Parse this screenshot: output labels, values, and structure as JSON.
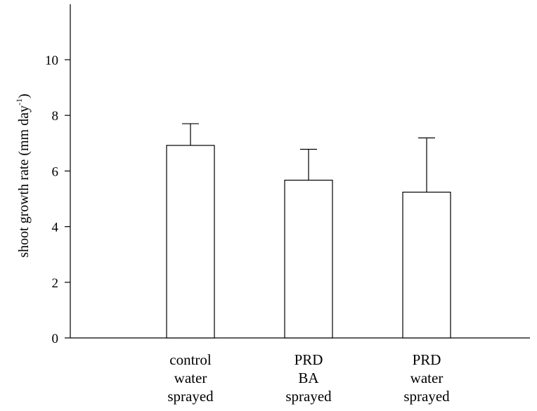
{
  "chart_data": {
    "type": "bar",
    "ylabel": "shoot growth rate (mm day",
    "ylabel_superscript": "-1",
    "ylabel_suffix": ")",
    "ylim": [
      0,
      12
    ],
    "yticks": [
      0,
      2,
      4,
      6,
      8,
      10
    ],
    "categories": [
      [
        "control",
        "water",
        "sprayed"
      ],
      [
        "PRD",
        "BA",
        "sprayed"
      ],
      [
        "PRD",
        "water",
        "sprayed"
      ]
    ],
    "values": [
      6.92,
      5.67,
      5.24
    ],
    "error_upper": [
      0.78,
      1.11,
      1.95
    ],
    "grid": false,
    "legend": "none",
    "colors": {
      "bar_fill": "#ffffff",
      "bar_stroke": "#000000",
      "axis": "#000000"
    }
  }
}
